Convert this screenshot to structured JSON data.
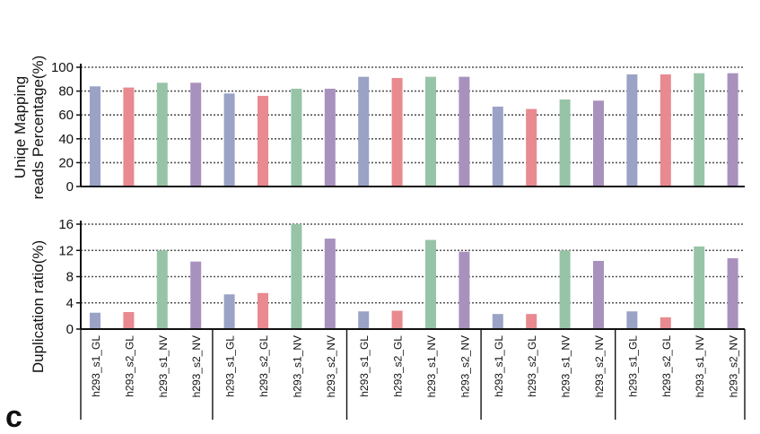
{
  "panel_label": "c",
  "colors": {
    "GL_s1": "#9aa3c6",
    "GL_s2": "#e88a8f",
    "NV_s1": "#97c4a6",
    "NV_s2": "#a991bd",
    "axis": "#111111",
    "grid": "#555555"
  },
  "chart_data": [
    {
      "type": "bar",
      "ylabel": [
        "Uniqe Mapping",
        "reads Percentage(%)"
      ],
      "ylim": [
        0,
        100
      ],
      "yticks": [
        0,
        20,
        40,
        60,
        80,
        100
      ],
      "grid": true,
      "categories": [
        "h293_s1_GL",
        "h293_s2_GL",
        "h293_s1_NV",
        "h293_s2_NV",
        "h293_s1_GL",
        "h293_s2_GL",
        "h293_s1_NV",
        "h293_s2_NV",
        "h293_s1_GL",
        "h293_s2_GL",
        "h293_s1_NV",
        "h293_s2_NV",
        "h293_s1_GL",
        "h293_s2_GL",
        "h293_s1_NV",
        "h293_s2_NV",
        "h293_s1_GL",
        "h293_s2_GL",
        "h293_s1_NV",
        "h293_s2_NV"
      ],
      "values": [
        84,
        83,
        87,
        87,
        78,
        76,
        82,
        82,
        92,
        91,
        92,
        92,
        67,
        65,
        73,
        72,
        94,
        94,
        95,
        95
      ]
    },
    {
      "type": "bar",
      "ylabel": [
        "Duplication ratio(%)"
      ],
      "ylim": [
        0,
        16
      ],
      "yticks": [
        0,
        4,
        8,
        12,
        16
      ],
      "grid": true,
      "categories": [
        "h293_s1_GL",
        "h293_s2_GL",
        "h293_s1_NV",
        "h293_s2_NV",
        "h293_s1_GL",
        "h293_s2_GL",
        "h293_s1_NV",
        "h293_s2_NV",
        "h293_s1_GL",
        "h293_s2_GL",
        "h293_s1_NV",
        "h293_s2_NV",
        "h293_s1_GL",
        "h293_s2_GL",
        "h293_s1_NV",
        "h293_s2_NV",
        "h293_s1_GL",
        "h293_s2_GL",
        "h293_s1_NV",
        "h293_s2_NV"
      ],
      "values": [
        2.5,
        2.6,
        12.0,
        10.3,
        5.3,
        5.5,
        16.0,
        13.8,
        2.7,
        2.8,
        13.6,
        11.8,
        2.3,
        2.3,
        12.0,
        10.4,
        2.7,
        1.8,
        12.6,
        10.8
      ]
    }
  ]
}
